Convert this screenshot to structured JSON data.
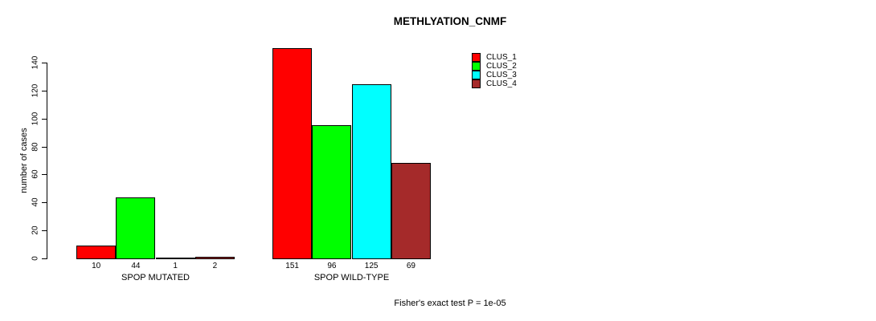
{
  "title": "METHLYATION_CNMF",
  "footer": "Fisher's exact test P = 1e-05",
  "chart_data": {
    "type": "bar",
    "title": "METHLYATION_CNMF",
    "categories": [
      "SPOP MUTATED",
      "SPOP WILD-TYPE"
    ],
    "series": [
      {
        "name": "CLUS_1",
        "color": "#FF0000",
        "values": [
          10,
          151
        ]
      },
      {
        "name": "CLUS_2",
        "color": "#00FF00",
        "values": [
          44,
          96
        ]
      },
      {
        "name": "CLUS_3",
        "color": "#00FFFF",
        "values": [
          1,
          125
        ]
      },
      {
        "name": "CLUS_4",
        "color": "#A52A2A",
        "values": [
          2,
          69
        ]
      }
    ],
    "xlabel": "",
    "ylabel": "number of cases",
    "yticks": [
      0,
      20,
      40,
      60,
      80,
      100,
      120,
      140
    ],
    "ylim": [
      0,
      140
    ],
    "bar_value_labels": true,
    "grid": false,
    "legend_position": "top-right",
    "annotation": "Fisher's exact test P = 1e-05"
  }
}
